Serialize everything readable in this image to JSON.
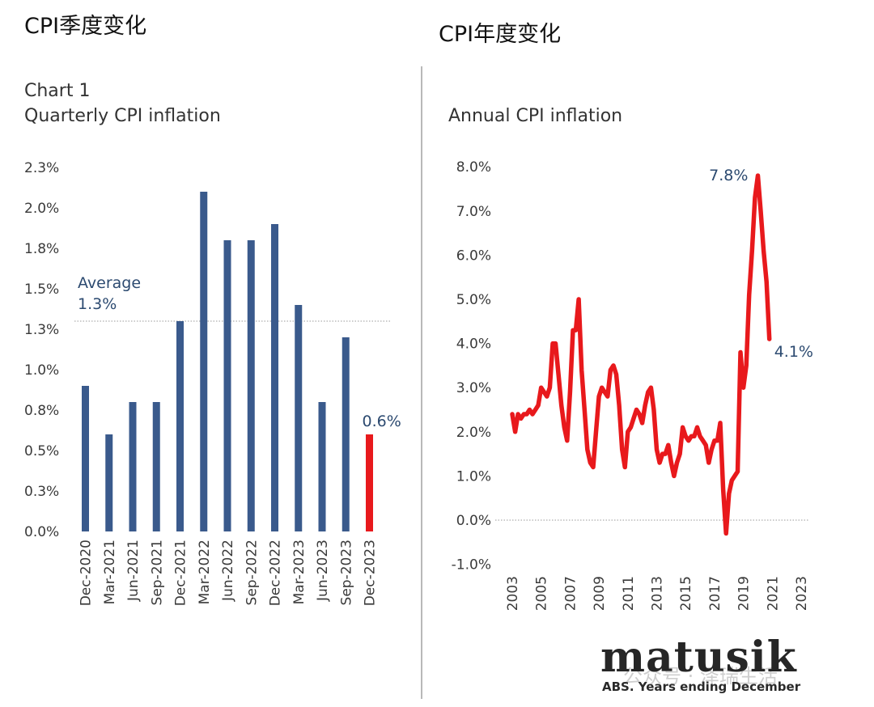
{
  "headings": {
    "left": "CPI季度变化",
    "right": "CPI年度变化"
  },
  "chart_data": [
    {
      "type": "bar",
      "title": "Chart 1",
      "subtitle": "Quarterly CPI inflation",
      "categories": [
        "Dec-2020",
        "Mar-2021",
        "Jun-2021",
        "Sep-2021",
        "Dec-2021",
        "Mar-2022",
        "Jun-2022",
        "Sep-2022",
        "Dec-2022",
        "Mar-2023",
        "Jun-2023",
        "Sep-2023",
        "Dec-2023"
      ],
      "values": [
        0.9,
        0.6,
        0.8,
        0.8,
        1.3,
        2.1,
        1.8,
        1.8,
        1.9,
        1.4,
        0.8,
        1.2,
        0.6
      ],
      "yticks": [
        "0.0%",
        "0.3%",
        "0.5%",
        "0.8%",
        "1.0%",
        "1.3%",
        "1.5%",
        "1.8%",
        "2.0%",
        "2.3%"
      ],
      "ylim": [
        0,
        2.25
      ],
      "average": {
        "value": 1.3,
        "label_line1": "Average",
        "label_line2": "1.3%"
      },
      "highlight": {
        "index": 12,
        "label": "0.6%"
      },
      "colors": {
        "bar": "#3a5a8c",
        "highlight": "#e8191c",
        "text": "#2c4a70"
      }
    },
    {
      "type": "line",
      "title": "Annual CPI inflation",
      "xticks": [
        "2003",
        "2005",
        "2007",
        "2009",
        "2011",
        "2013",
        "2015",
        "2017",
        "2019",
        "2021",
        "2023"
      ],
      "yticks": [
        "-1.0%",
        "0.0%",
        "1.0%",
        "2.0%",
        "3.0%",
        "4.0%",
        "5.0%",
        "6.0%",
        "7.0%",
        "8.0%"
      ],
      "xlim": [
        2003,
        2023
      ],
      "ylim": [
        -1,
        8
      ],
      "series": [
        {
          "points": [
            [
              2003.0,
              2.4
            ],
            [
              2003.2,
              2.0
            ],
            [
              2003.4,
              2.4
            ],
            [
              2003.6,
              2.3
            ],
            [
              2003.8,
              2.4
            ],
            [
              2004.0,
              2.4
            ],
            [
              2004.2,
              2.5
            ],
            [
              2004.4,
              2.4
            ],
            [
              2004.6,
              2.5
            ],
            [
              2004.8,
              2.6
            ],
            [
              2005.0,
              3.0
            ],
            [
              2005.2,
              2.9
            ],
            [
              2005.4,
              2.8
            ],
            [
              2005.6,
              3.0
            ],
            [
              2005.8,
              4.0
            ],
            [
              2006.0,
              4.0
            ],
            [
              2006.2,
              3.3
            ],
            [
              2006.4,
              2.6
            ],
            [
              2006.6,
              2.1
            ],
            [
              2006.8,
              1.8
            ],
            [
              2007.0,
              2.9
            ],
            [
              2007.2,
              4.3
            ],
            [
              2007.4,
              4.3
            ],
            [
              2007.6,
              5.0
            ],
            [
              2007.8,
              3.4
            ],
            [
              2008.0,
              2.5
            ],
            [
              2008.2,
              1.6
            ],
            [
              2008.4,
              1.3
            ],
            [
              2008.6,
              1.2
            ],
            [
              2008.8,
              2.0
            ],
            [
              2009.0,
              2.8
            ],
            [
              2009.2,
              3.0
            ],
            [
              2009.4,
              2.9
            ],
            [
              2009.6,
              2.8
            ],
            [
              2009.8,
              3.4
            ],
            [
              2010.0,
              3.5
            ],
            [
              2010.2,
              3.3
            ],
            [
              2010.4,
              2.6
            ],
            [
              2010.6,
              1.6
            ],
            [
              2010.8,
              1.2
            ],
            [
              2011.0,
              2.0
            ],
            [
              2011.2,
              2.1
            ],
            [
              2011.4,
              2.3
            ],
            [
              2011.6,
              2.5
            ],
            [
              2011.8,
              2.4
            ],
            [
              2012.0,
              2.2
            ],
            [
              2012.2,
              2.6
            ],
            [
              2012.4,
              2.9
            ],
            [
              2012.6,
              3.0
            ],
            [
              2012.8,
              2.5
            ],
            [
              2013.0,
              1.6
            ],
            [
              2013.2,
              1.3
            ],
            [
              2013.4,
              1.5
            ],
            [
              2013.6,
              1.5
            ],
            [
              2013.8,
              1.7
            ],
            [
              2014.0,
              1.3
            ],
            [
              2014.2,
              1.0
            ],
            [
              2014.4,
              1.3
            ],
            [
              2014.6,
              1.5
            ],
            [
              2014.8,
              2.1
            ],
            [
              2015.0,
              1.9
            ],
            [
              2015.2,
              1.8
            ],
            [
              2015.4,
              1.9
            ],
            [
              2015.6,
              1.9
            ],
            [
              2015.8,
              2.1
            ],
            [
              2016.0,
              1.9
            ],
            [
              2016.2,
              1.8
            ],
            [
              2016.4,
              1.7
            ],
            [
              2016.6,
              1.3
            ],
            [
              2016.8,
              1.6
            ],
            [
              2017.0,
              1.8
            ],
            [
              2017.2,
              1.8
            ],
            [
              2017.4,
              2.2
            ],
            [
              2017.6,
              0.7
            ],
            [
              2017.8,
              -0.3
            ],
            [
              2018.0,
              0.6
            ],
            [
              2018.2,
              0.9
            ],
            [
              2018.4,
              1.0
            ],
            [
              2018.6,
              1.1
            ],
            [
              2018.8,
              3.8
            ],
            [
              2019.0,
              3.0
            ],
            [
              2019.2,
              3.5
            ],
            [
              2019.4,
              5.1
            ],
            [
              2019.6,
              6.1
            ],
            [
              2019.8,
              7.3
            ],
            [
              2020.0,
              7.8
            ],
            [
              2020.2,
              7.0
            ],
            [
              2020.4,
              6.1
            ],
            [
              2020.6,
              5.4
            ],
            [
              2020.8,
              4.1
            ]
          ]
        }
      ],
      "endpoints": {
        "peak_label": "7.8%",
        "last_label": "4.1%"
      },
      "colors": {
        "line": "#e8191c",
        "text": "#2c4a70"
      }
    }
  ],
  "footer": {
    "logo": "matusik",
    "source": "ABS. Years ending December",
    "watermark": "公众号 · 泽瑞生活"
  }
}
